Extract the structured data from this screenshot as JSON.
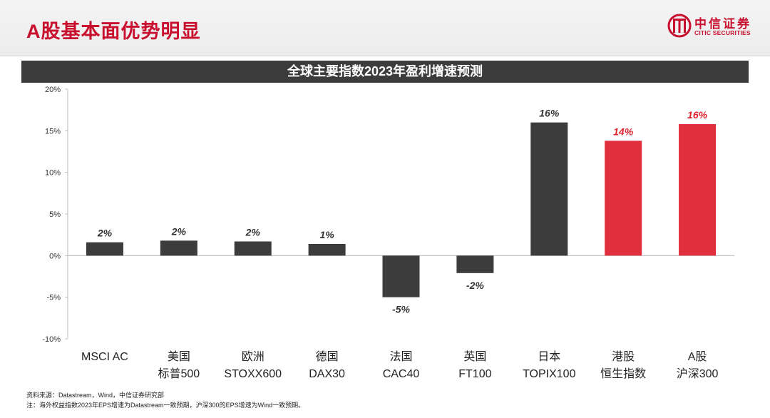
{
  "page": {
    "title": "A股基本面优势明显"
  },
  "logo": {
    "name_cn": "中信证券",
    "name_en": "CITIC SECURITIES",
    "icon": "citic-logo-icon"
  },
  "footnotes": {
    "source": "资料来源：Datastream，Wind，中信证券研究部",
    "note": "注：海外权益指数2023年EPS增速为Datastream一致预期，沪深300的EPS增速为Wind一致预期。"
  },
  "colors": {
    "brand_red": "#c8102e",
    "bar_dark": "#3c3c3c",
    "bar_red": "#e0303e",
    "label_red": "#e0202e"
  },
  "chart_data": {
    "type": "bar",
    "title": "全球主要指数2023年盈利增速预测",
    "categories": [
      [
        "MSCI AC"
      ],
      [
        "美国",
        "标普500"
      ],
      [
        "欧洲",
        "STOXX600"
      ],
      [
        "德国",
        "DAX30"
      ],
      [
        "法国",
        "CAC40"
      ],
      [
        "英国",
        "FT100"
      ],
      [
        "日本",
        "TOPIX100"
      ],
      [
        "港股",
        "恒生指数"
      ],
      [
        "A股",
        "沪深300"
      ]
    ],
    "values": [
      1.6,
      1.8,
      1.7,
      1.4,
      -5.0,
      -2.1,
      16.0,
      13.8,
      15.8
    ],
    "data_labels": [
      "2%",
      "2%",
      "2%",
      "1%",
      "-5%",
      "-2%",
      "16%",
      "14%",
      "16%"
    ],
    "highlight": [
      false,
      false,
      false,
      false,
      false,
      false,
      false,
      true,
      true
    ],
    "ylim": [
      -10,
      20
    ],
    "yticks": [
      20,
      15,
      10,
      5,
      0,
      -5,
      -10
    ],
    "ytick_labels": [
      "20%",
      "15%",
      "10%",
      "5%",
      "0%",
      "-5%",
      "-10%"
    ],
    "xlabel": "",
    "ylabel": "",
    "grid": false,
    "legend": "none"
  }
}
